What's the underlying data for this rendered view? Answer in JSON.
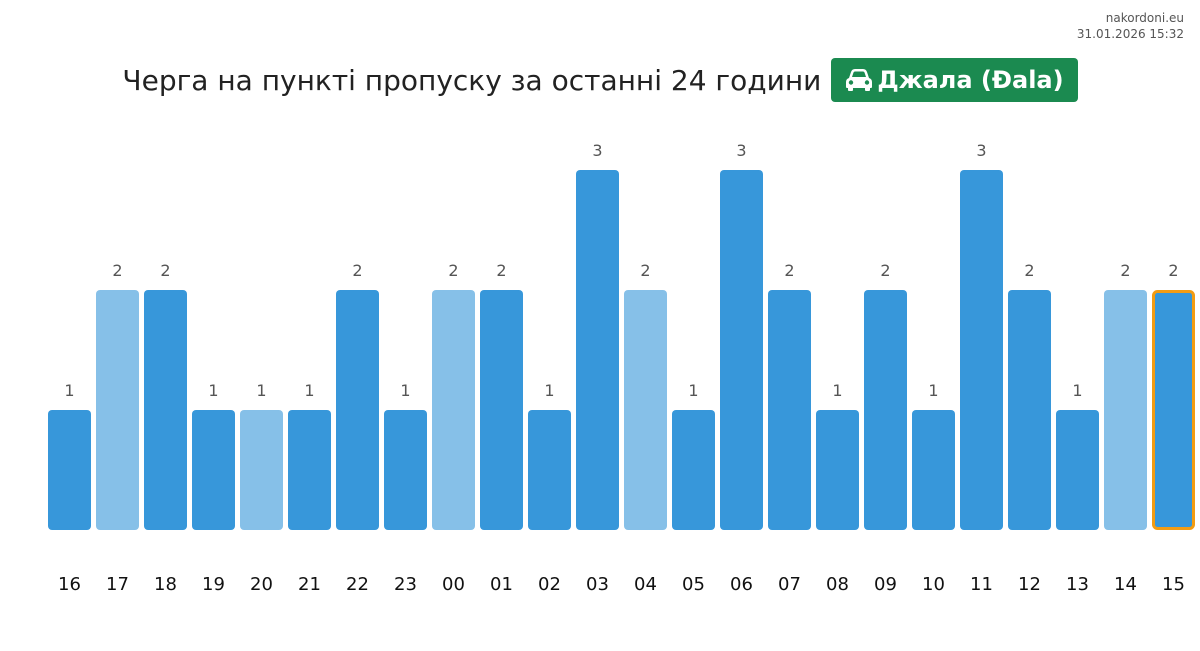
{
  "site": {
    "name": "nakordoni.eu",
    "timestamp": "31.01.2026 15:32"
  },
  "header": {
    "title": "Черга на пункті пропуску за останні 24 години",
    "checkpoint": "Джала (Đala)",
    "checkpoint_icon": "car-icon",
    "badge_color": "#1b8a50"
  },
  "chart_data": {
    "type": "bar",
    "categories": [
      "16",
      "17",
      "18",
      "19",
      "20",
      "21",
      "22",
      "23",
      "00",
      "01",
      "02",
      "03",
      "04",
      "05",
      "06",
      "07",
      "08",
      "09",
      "10",
      "11",
      "12",
      "13",
      "14",
      "15"
    ],
    "values": [
      1,
      2,
      2,
      1,
      1,
      1,
      2,
      1,
      2,
      2,
      1,
      3,
      2,
      1,
      3,
      2,
      1,
      2,
      1,
      3,
      2,
      1,
      2,
      2
    ],
    "highlight": [
      false,
      true,
      false,
      false,
      true,
      false,
      false,
      false,
      true,
      false,
      false,
      false,
      true,
      false,
      false,
      false,
      false,
      false,
      false,
      false,
      false,
      false,
      true,
      false
    ],
    "current_index": 23,
    "ylim": [
      0,
      3
    ],
    "grid": false,
    "legend": "none",
    "colors": {
      "bar": "#3797da",
      "bar_light": "#86c0e8",
      "current_outline": "#f39c12",
      "value_label": "#555555",
      "tick_label": "#111111"
    }
  }
}
